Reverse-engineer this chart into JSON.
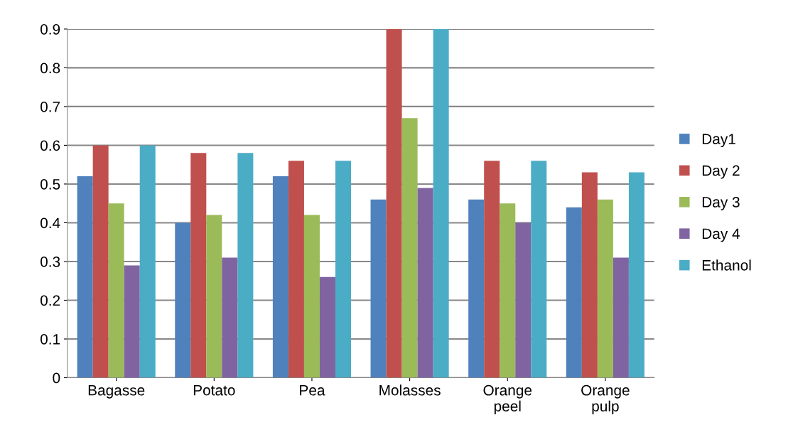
{
  "chart_data": {
    "type": "bar",
    "categories": [
      "Bagasse",
      "Potato",
      "Pea",
      "Molasses",
      "Orange\npeel",
      "Orange\npulp"
    ],
    "series": [
      {
        "name": "Day1",
        "color": "#4f81bd",
        "values": [
          0.52,
          0.4,
          0.52,
          0.46,
          0.46,
          0.44
        ]
      },
      {
        "name": "Day 2",
        "color": "#c0504d",
        "values": [
          0.6,
          0.58,
          0.56,
          0.9,
          0.56,
          0.53
        ]
      },
      {
        "name": "Day 3",
        "color": "#9bbb59",
        "values": [
          0.45,
          0.42,
          0.42,
          0.67,
          0.45,
          0.46
        ]
      },
      {
        "name": "Day 4",
        "color": "#8064a2",
        "values": [
          0.29,
          0.31,
          0.26,
          0.49,
          0.4,
          0.31
        ]
      },
      {
        "name": "Ethanol",
        "color": "#4bacc6",
        "values": [
          0.6,
          0.58,
          0.56,
          0.9,
          0.56,
          0.53
        ]
      }
    ],
    "ylim": [
      0,
      0.9
    ],
    "yticks": [
      0,
      0.1,
      0.2,
      0.3,
      0.4,
      0.5,
      0.6,
      0.7,
      0.8,
      0.9
    ],
    "grid": "y",
    "legend": "right"
  }
}
